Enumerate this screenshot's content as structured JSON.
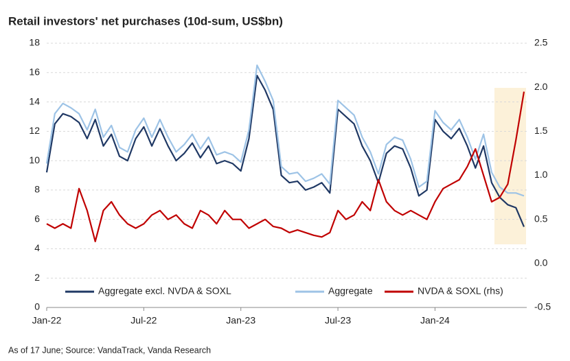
{
  "chart_data": {
    "type": "line",
    "title": "Retail investors' net purchases (10d-sum, US$bn)",
    "source": "As of 17 June; Source: VandaTrack, Vanda Research",
    "categories": [
      "Jan-22",
      null,
      null,
      null,
      null,
      null,
      null,
      null,
      null,
      null,
      null,
      null,
      "Jul-22",
      null,
      null,
      null,
      null,
      null,
      null,
      null,
      null,
      null,
      null,
      null,
      "Jan-23",
      null,
      null,
      null,
      null,
      null,
      null,
      null,
      null,
      null,
      null,
      null,
      "Jul-23",
      null,
      null,
      null,
      null,
      null,
      null,
      null,
      null,
      null,
      null,
      null,
      "Jan-24",
      null,
      null,
      null,
      null,
      null,
      null,
      null,
      null,
      null,
      null,
      null
    ],
    "series": [
      {
        "name": "Aggregate excl. NVDA & SOXL",
        "color": "#1f3864",
        "values": [
          9.2,
          12.5,
          13.2,
          13.0,
          12.6,
          11.5,
          12.8,
          11.0,
          11.8,
          10.3,
          10.0,
          11.5,
          12.3,
          11.0,
          12.2,
          11.0,
          10.0,
          10.5,
          11.2,
          10.2,
          11.0,
          9.8,
          10.0,
          9.8,
          9.3,
          11.5,
          15.8,
          14.8,
          13.5,
          9.0,
          8.5,
          8.6,
          8.0,
          8.2,
          8.5,
          7.8,
          13.5,
          13.0,
          12.5,
          11.0,
          10.0,
          8.5,
          10.5,
          11.0,
          10.8,
          9.5,
          7.6,
          8.0,
          12.8,
          12.0,
          11.5,
          12.2,
          11.0,
          9.5,
          11.0,
          8.5,
          7.5,
          7.0,
          6.8,
          5.5
        ]
      },
      {
        "name": "Aggregate",
        "color": "#9dc3e6",
        "values": [
          9.8,
          13.2,
          13.9,
          13.6,
          13.2,
          12.1,
          13.5,
          11.6,
          12.4,
          10.9,
          10.6,
          12.1,
          12.9,
          11.6,
          12.8,
          11.6,
          10.6,
          11.1,
          11.8,
          10.8,
          11.6,
          10.4,
          10.6,
          10.4,
          9.9,
          12.1,
          16.5,
          15.4,
          14.1,
          9.6,
          9.1,
          9.2,
          8.6,
          8.8,
          9.1,
          8.4,
          14.1,
          13.6,
          13.1,
          11.6,
          10.6,
          9.1,
          11.1,
          11.6,
          11.4,
          10.1,
          8.2,
          8.6,
          13.4,
          12.6,
          12.1,
          12.8,
          11.6,
          10.1,
          11.8,
          9.2,
          8.2,
          7.8,
          7.8,
          7.6
        ]
      },
      {
        "name": "NVDA & SOXL (rhs)",
        "color": "#c00000",
        "axis": "y2",
        "values": [
          0.45,
          0.4,
          0.45,
          0.4,
          0.85,
          0.6,
          0.25,
          0.6,
          0.7,
          0.55,
          0.45,
          0.4,
          0.45,
          0.55,
          0.6,
          0.5,
          0.55,
          0.45,
          0.4,
          0.6,
          0.55,
          0.45,
          0.6,
          0.5,
          0.5,
          0.4,
          0.45,
          0.5,
          0.42,
          0.4,
          0.35,
          0.38,
          0.35,
          0.32,
          0.3,
          0.35,
          0.6,
          0.5,
          0.55,
          0.7,
          0.6,
          0.95,
          0.7,
          0.6,
          0.55,
          0.6,
          0.55,
          0.5,
          0.7,
          0.85,
          0.9,
          0.95,
          1.1,
          1.3,
          1.0,
          0.7,
          0.75,
          0.9,
          1.4,
          1.95
        ]
      }
    ],
    "ylim": [
      0,
      18
    ],
    "yticks": [
      0,
      2,
      4,
      6,
      8,
      10,
      12,
      14,
      16,
      18
    ],
    "y2lim": [
      -0.5,
      2.5
    ],
    "y2ticks": [
      -0.5,
      {
        "value": 0,
        "label": "0.0"
      },
      0.5,
      {
        "value": 1,
        "label": "1.0"
      },
      1.5,
      {
        "value": 2,
        "label": "2.0"
      },
      2.5
    ],
    "grid": true
  }
}
